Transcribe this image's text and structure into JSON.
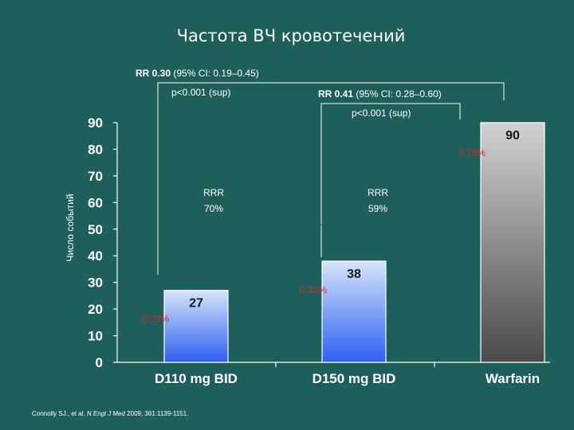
{
  "chart_data": {
    "type": "bar",
    "title": "Частота ВЧ кровотечений",
    "ylabel": "Число событий",
    "xlabel": "",
    "ylim": [
      0,
      90
    ],
    "yticks": [
      0,
      10,
      20,
      30,
      40,
      50,
      60,
      70,
      80,
      90
    ],
    "grid": false,
    "categories": [
      "D110 mg BID",
      "D150 mg BID",
      "Warfarin"
    ],
    "values": [
      27,
      38,
      90
    ],
    "value_labels": [
      "27",
      "38",
      "90"
    ],
    "rate_labels": [
      "0.23%",
      "0.32%",
      "0.76%"
    ],
    "annotations": {
      "comparison_110": {
        "rr_prefix": "RR 0.30",
        "rr_ci": " (95% CI: 0.19–0.45)",
        "p": "p<0.001 (sup)",
        "rrr_line1": "RRR",
        "rrr_line2": "70%"
      },
      "comparison_150": {
        "rr_prefix": "RR 0.41",
        "rr_ci": " (95% CI: 0.28–0.60)",
        "p": "p<0.001 (sup)",
        "rrr_line1": "RRR",
        "rrr_line2": "59%"
      }
    },
    "colors": {
      "background": "#1f5f5b",
      "dabigatran_bar_top": "#d6e4fb",
      "dabigatran_bar_bottom": "#2e5ff0",
      "warfarin_bar_top": "#d2d2d2",
      "warfarin_bar_bottom": "#4a4a4a",
      "rate_label": "#d42a1e"
    }
  },
  "citation": {
    "authors": "Connolly SJ., et al. ",
    "journal": "N Engl J Med",
    "details": " 2009; 361:1139-1151."
  }
}
